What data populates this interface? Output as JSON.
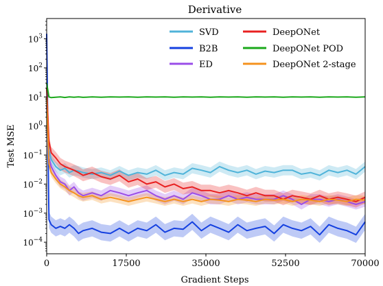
{
  "chart_data": {
    "type": "line",
    "title": "Derivative",
    "xlabel": "Gradient Steps",
    "ylabel": "Test MSE",
    "xlim": [
      0,
      70000
    ],
    "ylim": [
      4e-05,
      5000
    ],
    "yscale": "log",
    "grid": false,
    "legend_position": "top-right",
    "x_ticks": [
      0,
      17500,
      35000,
      52500,
      70000
    ],
    "x_tick_labels": [
      "0",
      "17500",
      "35000",
      "52500",
      "70000"
    ],
    "y_ticks": [
      0.0001,
      0.001,
      0.01,
      0.1,
      1,
      10,
      100,
      1000
    ],
    "y_tick_labels": [
      {
        "base": "10",
        "exp": "−4"
      },
      {
        "base": "10",
        "exp": "−3"
      },
      {
        "base": "10",
        "exp": "−2"
      },
      {
        "base": "10",
        "exp": "−1"
      },
      {
        "base": "10",
        "exp": "0"
      },
      {
        "base": "10",
        "exp": "1"
      },
      {
        "base": "10",
        "exp": "2"
      },
      {
        "base": "10",
        "exp": "3"
      }
    ],
    "x": [
      0,
      500,
      1000,
      2000,
      3000,
      4000,
      5000,
      6000,
      7000,
      8000,
      10000,
      12000,
      14000,
      16000,
      18000,
      20000,
      22000,
      24000,
      26000,
      28000,
      30000,
      32000,
      34000,
      36000,
      38000,
      40000,
      42000,
      44000,
      46000,
      48000,
      50000,
      52000,
      54000,
      56000,
      58000,
      60000,
      62000,
      64000,
      66000,
      68000,
      70000
    ],
    "series": [
      {
        "name": "SVD",
        "color": "#4fb3d9",
        "values": [
          3,
          0.15,
          0.07,
          0.04,
          0.03,
          0.035,
          0.025,
          0.03,
          0.028,
          0.025,
          0.022,
          0.025,
          0.02,
          0.028,
          0.02,
          0.025,
          0.022,
          0.03,
          0.02,
          0.025,
          0.022,
          0.035,
          0.03,
          0.025,
          0.04,
          0.03,
          0.025,
          0.03,
          0.022,
          0.028,
          0.025,
          0.03,
          0.03,
          0.022,
          0.025,
          0.02,
          0.03,
          0.025,
          0.03,
          0.022,
          0.04
        ],
        "spread": 1.5
      },
      {
        "name": "B2B",
        "color": "#1440e0",
        "values": [
          1500,
          0.0006,
          0.0004,
          0.0003,
          0.00035,
          0.0003,
          0.0004,
          0.0003,
          0.0002,
          0.00025,
          0.0003,
          0.00022,
          0.0002,
          0.0003,
          0.0002,
          0.0003,
          0.00025,
          0.0004,
          0.00022,
          0.0003,
          0.00028,
          0.0005,
          0.00025,
          0.0004,
          0.0003,
          0.00022,
          0.0004,
          0.00025,
          0.0003,
          0.00035,
          0.0002,
          0.0004,
          0.0003,
          0.00025,
          0.00035,
          0.00018,
          0.0004,
          0.0003,
          0.00025,
          0.00018,
          0.0005
        ],
        "spread": 1.9
      },
      {
        "name": "ED",
        "color": "#9a4de8",
        "values": [
          5,
          0.08,
          0.04,
          0.02,
          0.012,
          0.01,
          0.006,
          0.008,
          0.005,
          0.004,
          0.005,
          0.004,
          0.006,
          0.005,
          0.004,
          0.005,
          0.006,
          0.004,
          0.003,
          0.004,
          0.003,
          0.005,
          0.004,
          0.003,
          0.003,
          0.004,
          0.003,
          0.0035,
          0.003,
          0.003,
          0.003,
          0.004,
          0.003,
          0.002,
          0.003,
          0.003,
          0.0025,
          0.003,
          0.0025,
          0.002,
          0.0025
        ],
        "spread": 1.5
      },
      {
        "name": "DeepONet",
        "color": "#e82020",
        "values": [
          20,
          0.3,
          0.12,
          0.08,
          0.05,
          0.04,
          0.035,
          0.03,
          0.025,
          0.02,
          0.025,
          0.018,
          0.015,
          0.02,
          0.012,
          0.015,
          0.01,
          0.012,
          0.008,
          0.01,
          0.007,
          0.008,
          0.006,
          0.006,
          0.005,
          0.006,
          0.005,
          0.004,
          0.005,
          0.004,
          0.004,
          0.003,
          0.004,
          0.0035,
          0.003,
          0.004,
          0.003,
          0.0035,
          0.003,
          0.0025,
          0.0035
        ],
        "spread": 1.6
      },
      {
        "name": "DeepONet POD",
        "color": "#1aa81a",
        "values": [
          30,
          10,
          9.5,
          9.8,
          10,
          9.6,
          10,
          9.8,
          10.1,
          9.7,
          10,
          9.8,
          10,
          9.9,
          10,
          9.8,
          10.1,
          9.9,
          10,
          9.8,
          10,
          9.9,
          10,
          9.8,
          10.1,
          9.9,
          10,
          9.8,
          10,
          9.9,
          10,
          9.8,
          10.1,
          9.9,
          10,
          9.8,
          10,
          9.9,
          10,
          9.8,
          10
        ],
        "spread": 1.0
      },
      {
        "name": "DeepONet 2-stage",
        "color": "#f5921e",
        "values": [
          10,
          0.05,
          0.025,
          0.015,
          0.01,
          0.008,
          0.006,
          0.005,
          0.004,
          0.0035,
          0.004,
          0.003,
          0.0035,
          0.003,
          0.0025,
          0.003,
          0.0035,
          0.003,
          0.0025,
          0.003,
          0.0025,
          0.003,
          0.0025,
          0.003,
          0.0028,
          0.0025,
          0.003,
          0.0028,
          0.0025,
          0.003,
          0.0028,
          0.003,
          0.0025,
          0.003,
          0.0028,
          0.0025,
          0.003,
          0.0028,
          0.0025,
          0.003,
          0.0028
        ],
        "spread": 1.4
      }
    ]
  }
}
